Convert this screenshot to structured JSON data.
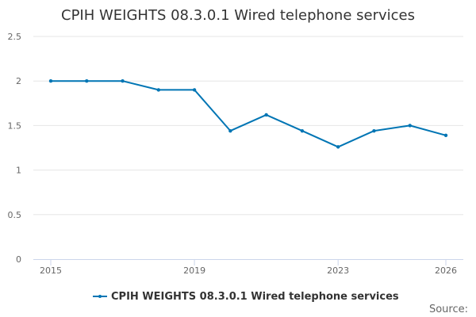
{
  "chart_data": {
    "type": "line",
    "title": "CPIH WEIGHTS 08.3.0.1 Wired telephone services",
    "xlabel": "",
    "ylabel": "",
    "x": [
      2015,
      2016,
      2017,
      2018,
      2019,
      2020,
      2021,
      2022,
      2023,
      2024,
      2025,
      2026
    ],
    "x_tick_labels": [
      "2015",
      "2019",
      "2023",
      "2026"
    ],
    "x_tick_values": [
      2015,
      2019,
      2023,
      2026
    ],
    "xlim": [
      2015,
      2026
    ],
    "ylim": [
      0,
      2.5
    ],
    "y_ticks": [
      0,
      0.5,
      1,
      1.5,
      2,
      2.5
    ],
    "y_tick_labels": [
      "0",
      "0.5",
      "1",
      "1.5",
      "2",
      "2.5"
    ],
    "grid": true,
    "legend": "bottom-center",
    "series": [
      {
        "name": "CPIH WEIGHTS 08.3.0.1 Wired telephone services",
        "color": "#0075b4",
        "values": [
          2.0,
          2.0,
          2.0,
          1.9,
          1.9,
          1.44,
          1.62,
          1.44,
          1.26,
          1.44,
          1.5,
          1.39
        ]
      }
    ],
    "credits": "Source:"
  }
}
